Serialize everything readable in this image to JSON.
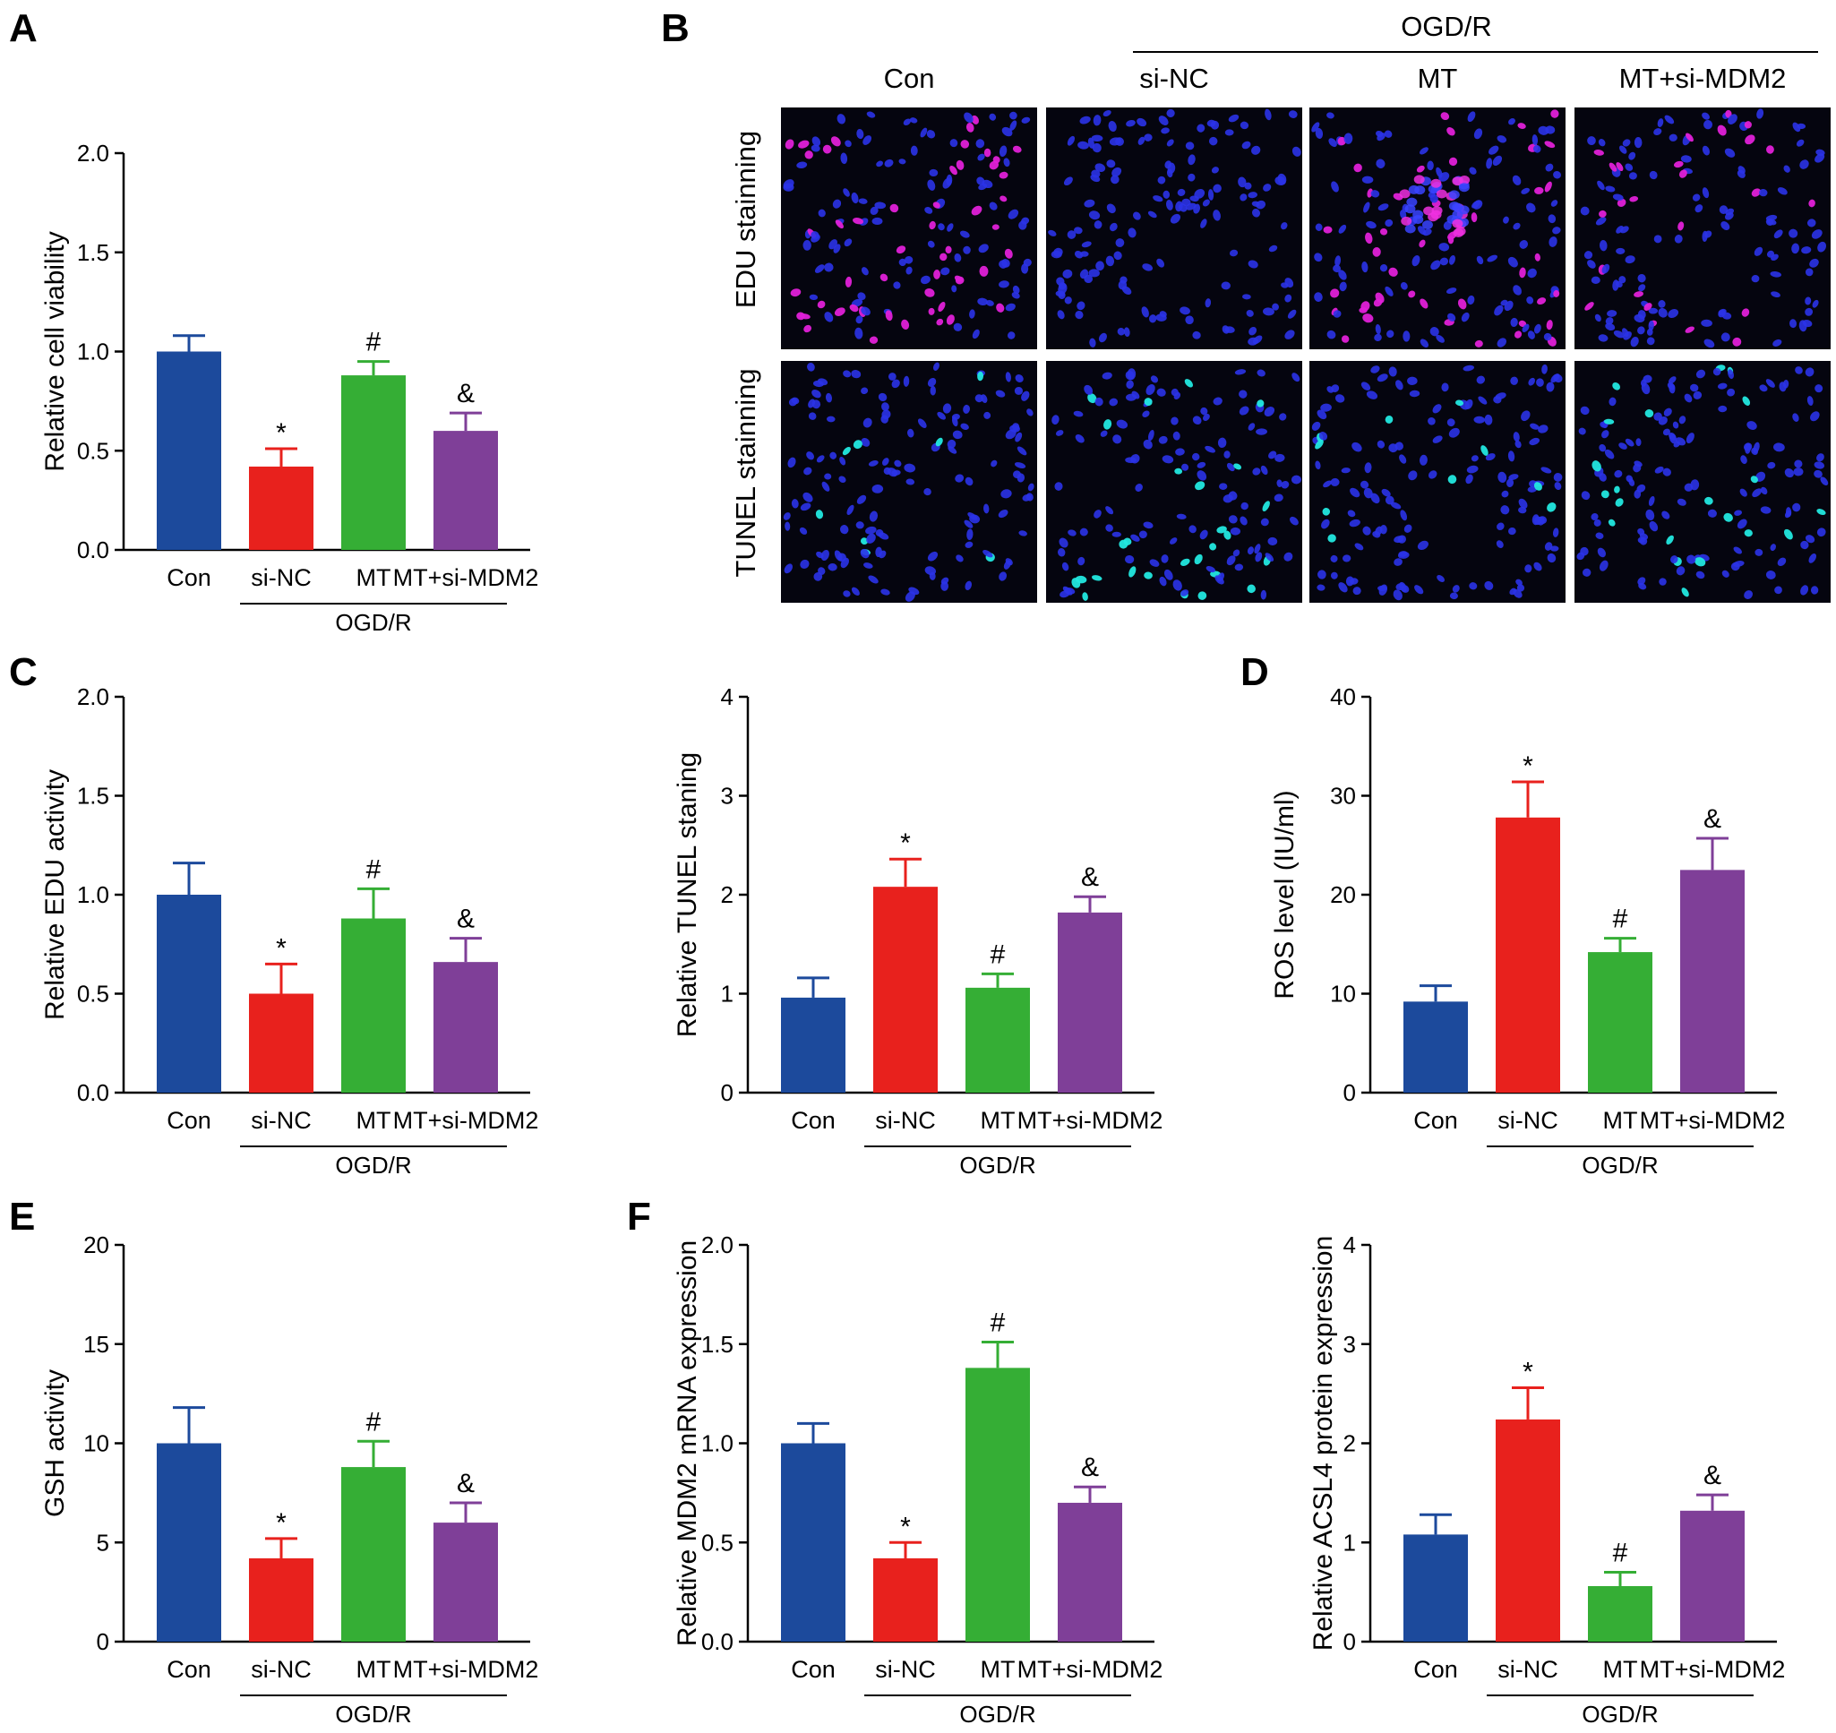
{
  "colors": {
    "con": "#1c4a9c",
    "si_nc": "#e8211d",
    "mt": "#35ae35",
    "mt_si": "#7f3f98"
  },
  "panel_b": {
    "letter": "B",
    "group_label": "OGD/R",
    "columns": [
      "Con",
      "si-NC",
      "MT",
      "MT+si-MDM2"
    ],
    "rows": [
      "EDU stainning",
      "TUNEL stainning"
    ]
  },
  "chart_data": [
    {
      "type": "bar",
      "panel": "A",
      "ylabel": "Relative cell viability",
      "categories": [
        "Con",
        "si-NC",
        "MT",
        "MT+si-MDM2"
      ],
      "group_label": "OGD/R",
      "values": [
        1.0,
        0.42,
        0.88,
        0.6
      ],
      "errors": [
        0.08,
        0.09,
        0.07,
        0.09
      ],
      "marks": [
        "",
        "*",
        "#",
        "&"
      ],
      "ylim": [
        0,
        2.0
      ],
      "yticks": [
        "0.0",
        "0.5",
        "1.0",
        "1.5",
        "2.0"
      ]
    },
    {
      "type": "bar",
      "panel": "C",
      "ylabel": "Relative EDU activity",
      "categories": [
        "Con",
        "si-NC",
        "MT",
        "MT+si-MDM2"
      ],
      "group_label": "OGD/R",
      "values": [
        1.0,
        0.5,
        0.88,
        0.66
      ],
      "errors": [
        0.16,
        0.15,
        0.15,
        0.12
      ],
      "marks": [
        "",
        "*",
        "#",
        "&"
      ],
      "ylim": [
        0,
        2.0
      ],
      "yticks": [
        "0.0",
        "0.5",
        "1.0",
        "1.5",
        "2.0"
      ]
    },
    {
      "type": "bar",
      "panel": "",
      "ylabel": "Relative TUNEL staning",
      "categories": [
        "Con",
        "si-NC",
        "MT",
        "MT+si-MDM2"
      ],
      "group_label": "OGD/R",
      "values": [
        0.96,
        2.08,
        1.06,
        1.82
      ],
      "errors": [
        0.2,
        0.28,
        0.14,
        0.16
      ],
      "marks": [
        "",
        "*",
        "#",
        "&"
      ],
      "ylim": [
        0,
        4
      ],
      "yticks": [
        "0",
        "1",
        "2",
        "3",
        "4"
      ]
    },
    {
      "type": "bar",
      "panel": "D",
      "ylabel": "ROS level (IU/ml)",
      "categories": [
        "Con",
        "si-NC",
        "MT",
        "MT+si-MDM2"
      ],
      "group_label": "OGD/R",
      "values": [
        9.2,
        27.8,
        14.2,
        22.5
      ],
      "errors": [
        1.6,
        3.6,
        1.4,
        3.2
      ],
      "marks": [
        "",
        "*",
        "#",
        "&"
      ],
      "ylim": [
        0,
        40
      ],
      "yticks": [
        "0",
        "10",
        "20",
        "30",
        "40"
      ]
    },
    {
      "type": "bar",
      "panel": "E",
      "ylabel": "GSH activity",
      "categories": [
        "Con",
        "si-NC",
        "MT",
        "MT+si-MDM2"
      ],
      "group_label": "OGD/R",
      "values": [
        10.0,
        4.2,
        8.8,
        6.0
      ],
      "errors": [
        1.8,
        1.0,
        1.3,
        1.0
      ],
      "marks": [
        "",
        "*",
        "#",
        "&"
      ],
      "ylim": [
        0,
        20
      ],
      "yticks": [
        "0",
        "5",
        "10",
        "15",
        "20"
      ]
    },
    {
      "type": "bar",
      "panel": "F",
      "ylabel": "Relative MDM2 mRNA expression",
      "categories": [
        "Con",
        "si-NC",
        "MT",
        "MT+si-MDM2"
      ],
      "group_label": "OGD/R",
      "values": [
        1.0,
        0.42,
        1.38,
        0.7
      ],
      "errors": [
        0.1,
        0.08,
        0.13,
        0.08
      ],
      "marks": [
        "",
        "*",
        "#",
        "&"
      ],
      "ylim": [
        0,
        2.0
      ],
      "yticks": [
        "0.0",
        "0.5",
        "1.0",
        "1.5",
        "2.0"
      ]
    },
    {
      "type": "bar",
      "panel": "",
      "ylabel": "Relative ACSL4 protein expression",
      "categories": [
        "Con",
        "si-NC",
        "MT",
        "MT+si-MDM2"
      ],
      "group_label": "OGD/R",
      "values": [
        1.08,
        2.24,
        0.56,
        1.32
      ],
      "errors": [
        0.2,
        0.32,
        0.14,
        0.16
      ],
      "marks": [
        "",
        "*",
        "#",
        "&"
      ],
      "ylim": [
        0,
        4
      ],
      "yticks": [
        "0",
        "1",
        "2",
        "3",
        "4"
      ]
    }
  ]
}
